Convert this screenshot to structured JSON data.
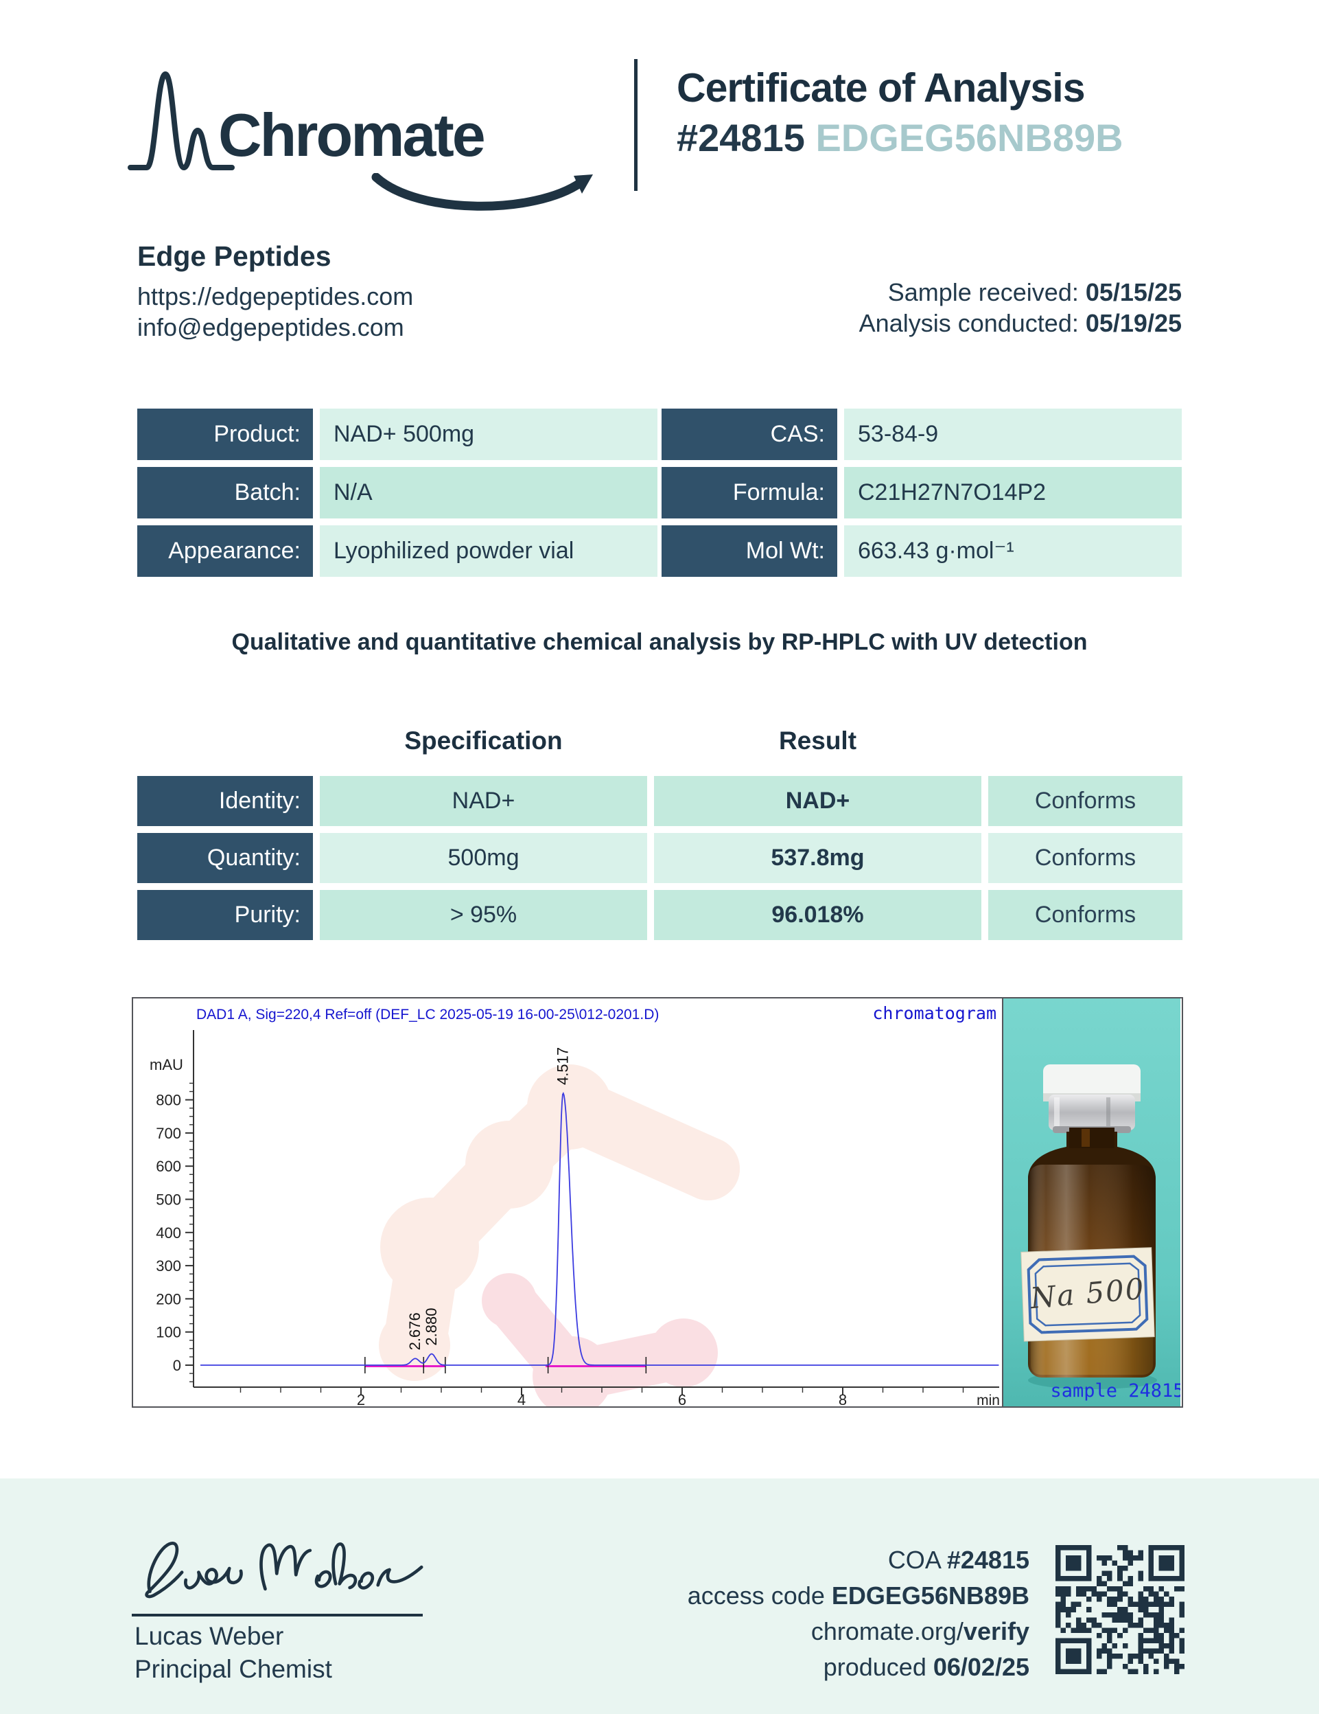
{
  "header": {
    "brand": "Chromate",
    "title": "Certificate of Analysis",
    "coa_number": "#24815",
    "access_code": "EDGEG56NB89B"
  },
  "client": {
    "name": "Edge Peptides",
    "website": "https://edgepeptides.com",
    "email": "info@edgepeptides.com",
    "received_label": "Sample received:",
    "received_date": "05/15/25",
    "conducted_label": "Analysis conducted:",
    "conducted_date": "05/19/25"
  },
  "product": {
    "left_rows": [
      {
        "label": "Product:",
        "value": "NAD+ 500mg"
      },
      {
        "label": "Batch:",
        "value": "N/A"
      },
      {
        "label": "Appearance:",
        "value": "Lyophilized powder vial"
      }
    ],
    "right_rows": [
      {
        "label": "CAS:",
        "value": "53-84-9"
      },
      {
        "label": "Formula:",
        "value": "C21H27N7O14P2"
      },
      {
        "label": "Mol Wt:",
        "value": "663.43 g·mol⁻¹"
      }
    ]
  },
  "method_note": "Qualitative and quantitative chemical analysis by RP-HPLC with UV detection",
  "results": {
    "spec_header": "Specification",
    "result_header": "Result",
    "rows": [
      {
        "label": "Identity:",
        "spec": "NAD+",
        "result": "NAD+",
        "status": "Conforms"
      },
      {
        "label": "Quantity:",
        "spec": "500mg",
        "result": "537.8mg",
        "status": "Conforms"
      },
      {
        "label": "Purity:",
        "spec": "> 95%",
        "result": "96.018%",
        "status": "Conforms"
      }
    ]
  },
  "chart_data": {
    "type": "line",
    "title": "DAD1 A, Sig=220,4 Ref=off (DEF_LC 2025-05-19 16-00-25\\012-0201.D)",
    "corner_label": "chromatogram",
    "ylabel": "mAU",
    "xlabel": "min",
    "xlim": [
      0,
      9.9
    ],
    "ylim": [
      -60,
      880
    ],
    "yticks": [
      0,
      100,
      200,
      300,
      400,
      500,
      600,
      700,
      800
    ],
    "xticks": [
      2,
      4,
      6,
      8
    ],
    "series": [
      {
        "name": "DAD1 A, Sig=220,4",
        "color": "#3b3be0",
        "peaks": [
          {
            "rt": 2.676,
            "label": "2.676",
            "height_mAU": 20
          },
          {
            "rt": 2.88,
            "label": "2.880",
            "height_mAU": 34
          },
          {
            "rt": 4.517,
            "label": "4.517",
            "height_mAU": 820
          }
        ]
      }
    ],
    "integration_regions": [
      [
        2.05,
        3.05
      ],
      [
        4.3,
        5.55
      ]
    ],
    "integration_marks": [
      2.05,
      2.78,
      3.05,
      4.33,
      5.55
    ],
    "baseline_color": "#e61bc8"
  },
  "photo": {
    "vial_label": "Na 500",
    "caption": "sample 24815"
  },
  "footer": {
    "coa_label": "COA",
    "coa_number": "#24815",
    "access_label": "access code",
    "access_code": "EDGEG56NB89B",
    "verify_prefix": "chromate.org/",
    "verify_bold": "verify",
    "produced_label": "produced",
    "produced_date": "06/02/25",
    "signer_name": "Lucas Weber",
    "signer_title": "Principal Chemist"
  },
  "colors": {
    "navy_text": "#1f3342",
    "label_cell": "#30516a",
    "mint_light": "#d9f2ea",
    "mint_dark": "#c3eadd",
    "footer_band": "#e9f5f1",
    "code_teal": "#a7c9cc",
    "chart_blue": "#1515cf",
    "trace_blue": "#3b3be0",
    "integration_magenta": "#e61bc8",
    "photo_teal": "#68cdc5"
  }
}
